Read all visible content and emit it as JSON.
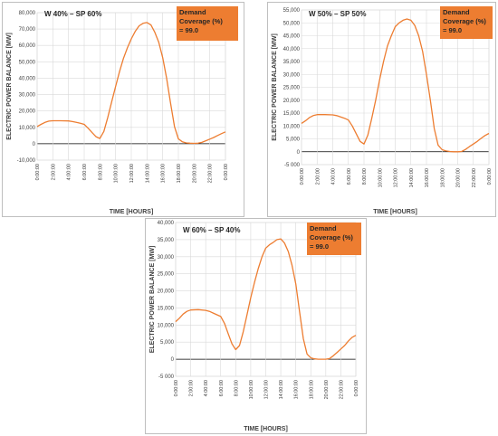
{
  "chart_data": [
    {
      "type": "line",
      "title": "W 40% – SP 60%",
      "annotation": {
        "label": "Demand Coverage (%)",
        "value": "= 99.0",
        "lines": [
          "Demand",
          "Coverage (%)",
          "= 99.0"
        ]
      },
      "xlabel": "TIME [HOURS]",
      "ylabel": "ELECTRIC POWER BALANCE [MW]",
      "ylim": [
        -10000,
        80000
      ],
      "yticks": [
        -10000,
        0,
        10000,
        20000,
        30000,
        40000,
        50000,
        60000,
        70000,
        80000
      ],
      "ytick_labels": [
        "-10,000",
        "0",
        "10,000",
        "20,000",
        "30,000",
        "40,000",
        "50,000",
        "60,000",
        "70,000",
        "80,000"
      ],
      "xlim": [
        0,
        24
      ],
      "xticks": [
        0,
        2,
        4,
        6,
        8,
        10,
        12,
        14,
        16,
        18,
        20,
        22,
        24
      ],
      "xtick_labels": [
        "0:00:00",
        "2:00:00",
        "4:00:00",
        "6:00:00",
        "8:00:00",
        "10:00:00",
        "12:00:00",
        "14:00:00",
        "16:00:00",
        "18:00:00",
        "20:00:00",
        "22:00:00",
        "0:00:00"
      ],
      "grid": true,
      "legend": "none",
      "color": "#ed7d31",
      "series": [
        {
          "x": [
            0,
            0.5,
            1,
            1.5,
            2,
            3,
            4,
            4.5,
            5,
            5.5,
            6,
            6.5,
            7,
            7.5,
            8,
            8.5,
            9,
            9.5,
            10,
            10.5,
            11,
            11.5,
            12,
            12.5,
            13,
            13.5,
            14,
            14.5,
            15,
            15.5,
            16,
            16.5,
            17,
            17.5,
            18,
            18.5,
            19,
            19.5,
            20,
            20.5,
            21,
            21.5,
            22,
            22.5,
            23,
            23.5,
            24
          ],
          "y": [
            10500,
            11800,
            13000,
            13800,
            14000,
            14000,
            13900,
            13500,
            13000,
            12500,
            11800,
            9500,
            6800,
            4300,
            3200,
            7500,
            16000,
            25500,
            35000,
            44000,
            52000,
            58500,
            64000,
            68500,
            72000,
            73500,
            74000,
            72500,
            68000,
            62000,
            52500,
            40000,
            25000,
            10500,
            3000,
            1200,
            500,
            300,
            200,
            300,
            800,
            1800,
            2800,
            3800,
            5000,
            6200,
            7200
          ]
        }
      ]
    },
    {
      "type": "line",
      "title": "W 50% – SP 50%",
      "annotation": {
        "label": "Demand Coverage (%)",
        "value": "= 99.0",
        "lines": [
          "Demand",
          "Coverage (%)",
          "= 99.0"
        ]
      },
      "xlabel": "TIME [HOURS]",
      "ylabel": "ELECTRIC POWER BALANCE [MW]",
      "ylim": [
        -5000,
        55000
      ],
      "yticks": [
        -5000,
        0,
        5000,
        10000,
        15000,
        20000,
        25000,
        30000,
        35000,
        40000,
        45000,
        50000,
        55000
      ],
      "ytick_labels": [
        "-5 000",
        "0",
        "5,000",
        "10,000",
        "15,000",
        "20,000",
        "25,000",
        "30,000",
        "35,000",
        "40,000",
        "45,000",
        "50,000",
        "55,000"
      ],
      "xlim": [
        0,
        24
      ],
      "xticks": [
        0,
        2,
        4,
        6,
        8,
        10,
        12,
        14,
        16,
        18,
        20,
        22,
        24
      ],
      "xtick_labels": [
        "0:00:00",
        "2:00:00",
        "4:00:00",
        "6:00:00",
        "8:00:00",
        "10:00:00",
        "12:00:00",
        "14:00:00",
        "16:00:00",
        "18:00:00",
        "20:00:00",
        "22:00:00",
        "0:00:00"
      ],
      "grid": true,
      "legend": "none",
      "color": "#ed7d31",
      "series": [
        {
          "x": [
            0,
            0.5,
            1,
            1.5,
            2,
            3,
            4,
            4.5,
            5,
            5.5,
            6,
            6.5,
            7,
            7.5,
            8,
            8.5,
            9,
            9.5,
            10,
            10.5,
            11,
            11.5,
            12,
            12.5,
            13,
            13.5,
            14,
            14.5,
            15,
            15.5,
            16,
            16.5,
            17,
            17.5,
            18,
            18.5,
            19,
            19.5,
            20,
            20.5,
            21,
            21.5,
            22,
            22.5,
            23,
            23.5,
            24
          ],
          "y": [
            11000,
            12000,
            13200,
            14000,
            14400,
            14400,
            14300,
            14000,
            13500,
            13000,
            12300,
            10000,
            7000,
            4000,
            3000,
            6500,
            13000,
            20000,
            28000,
            35000,
            41000,
            45000,
            48500,
            50000,
            51000,
            51500,
            51000,
            49000,
            45000,
            39000,
            30000,
            20000,
            9000,
            2500,
            800,
            300,
            100,
            0,
            0,
            100,
            900,
            2000,
            3000,
            4000,
            5200,
            6300,
            7100
          ]
        }
      ]
    },
    {
      "type": "line",
      "title": "W 60% – SP 40%",
      "annotation": {
        "label": "Demand Coverage (%)",
        "value": "= 99.0",
        "lines": [
          "Demand",
          "Coverage (%)",
          "= 99.0"
        ]
      },
      "xlabel": "TIME [HOURS]",
      "ylabel": "ELECTRIC POWER BALANCE [MW]",
      "ylim": [
        -5000,
        40000
      ],
      "yticks": [
        -5000,
        0,
        5000,
        10000,
        15000,
        20000,
        25000,
        30000,
        35000,
        40000
      ],
      "ytick_labels": [
        "-5 000",
        "0",
        "5,000",
        "10,000",
        "15,000",
        "20,000",
        "25,000",
        "30,000",
        "35,000",
        "40,000"
      ],
      "xlim": [
        0,
        24
      ],
      "xticks": [
        0,
        2,
        4,
        6,
        8,
        10,
        12,
        14,
        16,
        18,
        20,
        22,
        24
      ],
      "xtick_labels": [
        "0:00:00",
        "2:00:00",
        "4:00:00",
        "6:00:00",
        "8:00:00",
        "10:00:00",
        "12:00:00",
        "14:00:00",
        "16:00:00",
        "18:00:00",
        "20:00:00",
        "22:00:00",
        "0:00:00"
      ],
      "grid": true,
      "legend": "none",
      "color": "#ed7d31",
      "series": [
        {
          "x": [
            0,
            0.5,
            1,
            1.5,
            2,
            3,
            4,
            4.5,
            5,
            5.5,
            6,
            6.5,
            7,
            7.5,
            8,
            8.5,
            9,
            9.5,
            10,
            10.5,
            11,
            11.5,
            12,
            12.5,
            13,
            13.5,
            14,
            14.5,
            15,
            15.5,
            16,
            16.5,
            17,
            17.5,
            18,
            18.5,
            19,
            19.5,
            20,
            20.5,
            21,
            21.5,
            22,
            22.5,
            23,
            23.5,
            24
          ],
          "y": [
            11000,
            12000,
            13200,
            14000,
            14400,
            14500,
            14300,
            14000,
            13500,
            13000,
            12500,
            10500,
            7500,
            4500,
            2800,
            4000,
            8000,
            13000,
            18000,
            22500,
            26500,
            30000,
            32500,
            33500,
            34200,
            35000,
            35200,
            34000,
            31500,
            27500,
            22000,
            14000,
            6000,
            1500,
            400,
            100,
            0,
            0,
            0,
            200,
            1000,
            2000,
            3000,
            4000,
            5300,
            6400,
            7000
          ]
        }
      ]
    }
  ]
}
